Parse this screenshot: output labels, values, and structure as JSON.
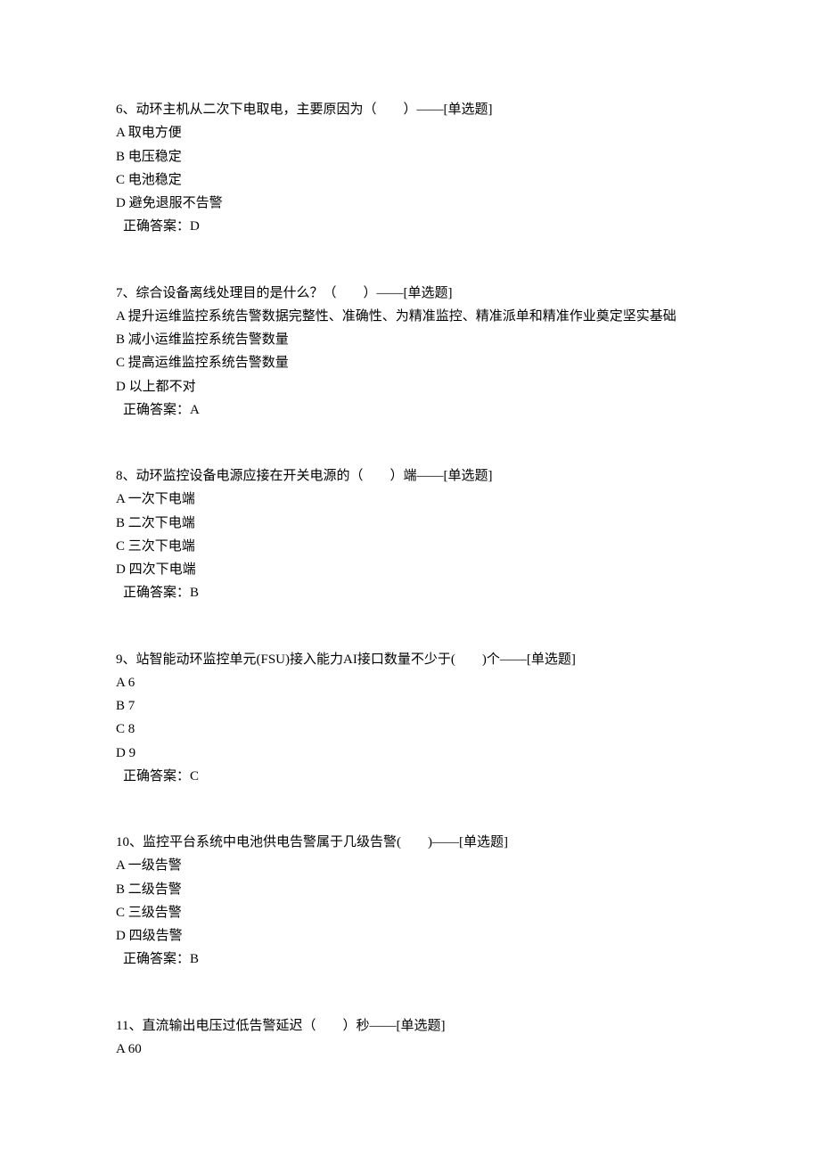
{
  "questions": [
    {
      "prompt": "6、动环主机从二次下电取电，主要原因为（　　）——[单选题]",
      "options": [
        "A 取电方便",
        "B 电压稳定",
        "C 电池稳定",
        "D 避免退服不告警"
      ],
      "answer": "正确答案：D"
    },
    {
      "prompt": "7、综合设备离线处理目的是什么？（　　）——[单选题]",
      "options": [
        "A 提升运维监控系统告警数据完整性、准确性、为精准监控、精准派单和精准作业奠定坚实基础",
        "B 减小运维监控系统告警数量",
        "C 提高运维监控系统告警数量",
        "D 以上都不对"
      ],
      "answer": "正确答案：A"
    },
    {
      "prompt": "8、动环监控设备电源应接在开关电源的（　　）端——[单选题]",
      "options": [
        "A 一次下电端",
        "B 二次下电端",
        "C 三次下电端",
        "D 四次下电端"
      ],
      "answer": "正确答案：B"
    },
    {
      "prompt": "9、站智能动环监控单元(FSU)接入能力AI接口数量不少于(　　)个——[单选题]",
      "options": [
        "A 6",
        "B 7",
        "C 8",
        "D 9"
      ],
      "answer": "正确答案：C"
    },
    {
      "prompt": "10、监控平台系统中电池供电告警属于几级告警(　　)——[单选题]",
      "options": [
        "A 一级告警",
        "B 二级告警",
        "C 三级告警",
        "D 四级告警"
      ],
      "answer": "正确答案：B"
    },
    {
      "prompt": "11、直流输出电压过低告警延迟（　　）秒——[单选题]",
      "options": [
        "A 60"
      ],
      "answer": null
    }
  ]
}
